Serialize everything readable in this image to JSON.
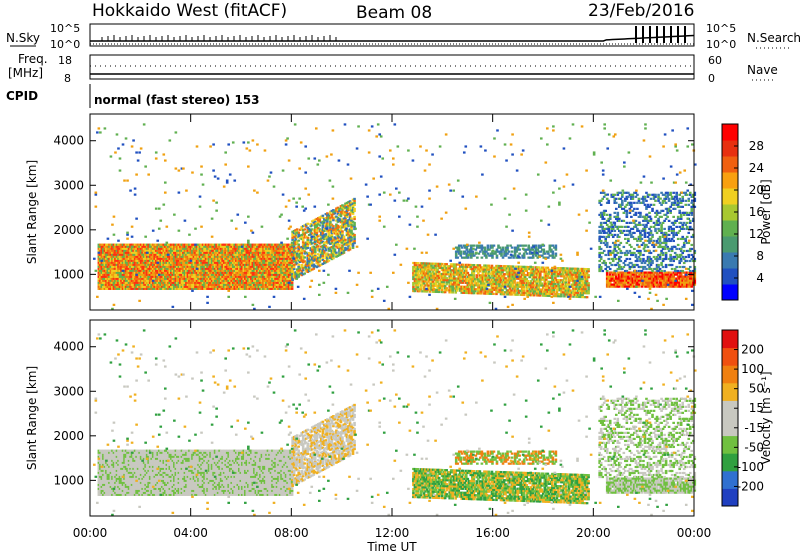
{
  "header": {
    "radar": "Hokkaido West (fitACF)",
    "beam": "Beam 08",
    "date": "23/Feb/2016"
  },
  "top_panels": {
    "nsky_label": "N.Sky",
    "nsky_ticks": [
      "10^5",
      "10^0"
    ],
    "nsearch_ticks": [
      "10^5",
      "10^0"
    ],
    "nsearch_label": "N.Search",
    "freq_label_1": "Freq.",
    "freq_label_2": "[MHz]",
    "freq_ticks": [
      "18",
      "8"
    ],
    "nave_ticks": [
      "60",
      "0"
    ],
    "nave_label": "Nave",
    "cpid_label": "CPID",
    "cpid_value": "normal (fast stereo) 153"
  },
  "chart_data": [
    {
      "type": "heatmap",
      "title": "Power",
      "ylabel": "Slant Range [km]",
      "xlabel": "Time UT",
      "x_ticks": [
        "00:00",
        "04:00",
        "08:00",
        "12:00",
        "16:00",
        "20:00",
        "00:00"
      ],
      "y_ticks": [
        1000,
        2000,
        3000,
        4000
      ],
      "ylim": [
        200,
        4600
      ],
      "colorbar_label": "Power [dB]",
      "colorbar_ticks": [
        "28",
        "24",
        "20",
        "16",
        "12",
        "8",
        "4"
      ],
      "colorbar_colors": [
        "#0000ff",
        "#2050c0",
        "#3a7ab0",
        "#4a9a70",
        "#60b050",
        "#a8c830",
        "#f0d020",
        "#f8a010",
        "#f06010",
        "#e83010",
        "#ff0000"
      ]
    },
    {
      "type": "heatmap",
      "title": "Velocity",
      "ylabel": "Slant Range [km]",
      "xlabel": "Time UT",
      "x_ticks": [
        "00:00",
        "04:00",
        "08:00",
        "12:00",
        "16:00",
        "20:00",
        "00:00"
      ],
      "y_ticks": [
        1000,
        2000,
        3000,
        4000
      ],
      "ylim": [
        200,
        4600
      ],
      "colorbar_label": "Velocity [m s⁻¹]",
      "colorbar_ticks": [
        "200",
        "100",
        "50",
        "15",
        "-15",
        "-50",
        "-100",
        "-200"
      ],
      "colorbar_colors": [
        "#2040c0",
        "#3070d0",
        "#30a040",
        "#70c040",
        "#c8c8c0",
        "#c8c8c0",
        "#f0b020",
        "#f08010",
        "#f05010",
        "#e01010"
      ]
    }
  ],
  "xaxis_label": "Time UT"
}
